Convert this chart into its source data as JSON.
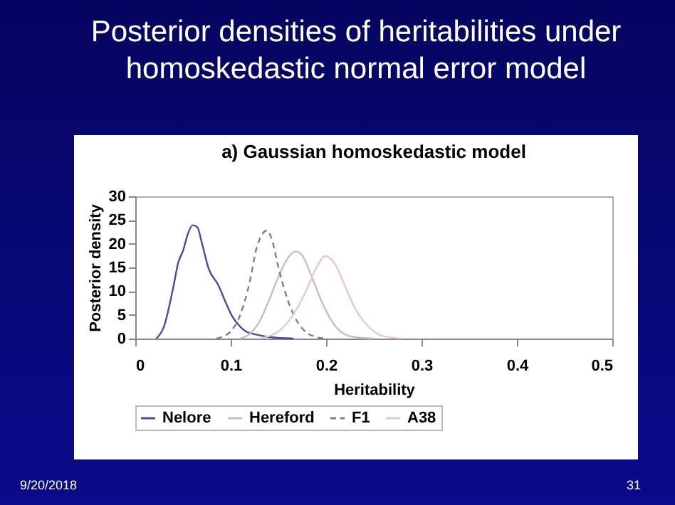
{
  "chart_data": {
    "type": "line",
    "title": "Posterior densities of heritabilities under homoskedastic normal error model",
    "subtitle": "a) Gaussian homoskedastic model",
    "xlabel": "Heritability",
    "ylabel": "Posterior density",
    "xlim": [
      0,
      0.5
    ],
    "xticks": [
      0,
      0.1,
      0.2,
      0.3,
      0.4,
      0.5
    ],
    "ylim": [
      0,
      30
    ],
    "yticks": [
      0,
      5,
      10,
      15,
      20,
      25,
      30
    ],
    "legend": "bottom",
    "grid": false,
    "line_style": "solid",
    "series": [
      {
        "name": "Nelore",
        "color": "#4a4aa8",
        "x": [
          0.022,
          0.03,
          0.04,
          0.045,
          0.05,
          0.055,
          0.06,
          0.065,
          0.07,
          0.077,
          0.087,
          0.095,
          0.101,
          0.11,
          0.116,
          0.13,
          0.141,
          0.166
        ],
        "values": [
          0,
          2.5,
          11,
          16,
          18.5,
          22,
          23.9,
          23.5,
          20,
          14.7,
          11.3,
          7.5,
          4.9,
          2.5,
          1.5,
          0.7,
          0.3,
          0
        ]
      },
      {
        "name": "Hereford",
        "color": "#c8bcc8",
        "x": [
          0.11,
          0.12,
          0.13,
          0.14,
          0.15,
          0.16,
          0.168,
          0.175,
          0.185,
          0.195,
          0.205,
          0.215,
          0.23,
          0.25
        ],
        "values": [
          0,
          1,
          3.5,
          8,
          13,
          17,
          18.4,
          17.5,
          13,
          8,
          4,
          1.5,
          0.3,
          0
        ]
      },
      {
        "name": "F1",
        "color": "#8a7a88",
        "line_style": "dashed",
        "x": [
          0.085,
          0.09,
          0.1,
          0.11,
          0.12,
          0.127,
          0.133,
          0.138,
          0.143,
          0.15,
          0.16,
          0.17,
          0.18,
          0.19,
          0.2
        ],
        "values": [
          0,
          0.3,
          1.5,
          5,
          12,
          19,
          22,
          22.8,
          21,
          15,
          8,
          3.5,
          1.2,
          0.3,
          0
        ]
      },
      {
        "name": "A38",
        "color": "#e6c8d2",
        "x": [
          0.13,
          0.14,
          0.15,
          0.16,
          0.17,
          0.18,
          0.19,
          0.199,
          0.21,
          0.22,
          0.23,
          0.24,
          0.25,
          0.26,
          0.28
        ],
        "values": [
          0,
          0.5,
          1.5,
          3.5,
          6.5,
          10.5,
          15,
          17.4,
          15.5,
          11,
          6.5,
          3.5,
          1.5,
          0.5,
          0
        ]
      }
    ],
    "annotations": [
      "9/20/2018",
      "31"
    ]
  }
}
